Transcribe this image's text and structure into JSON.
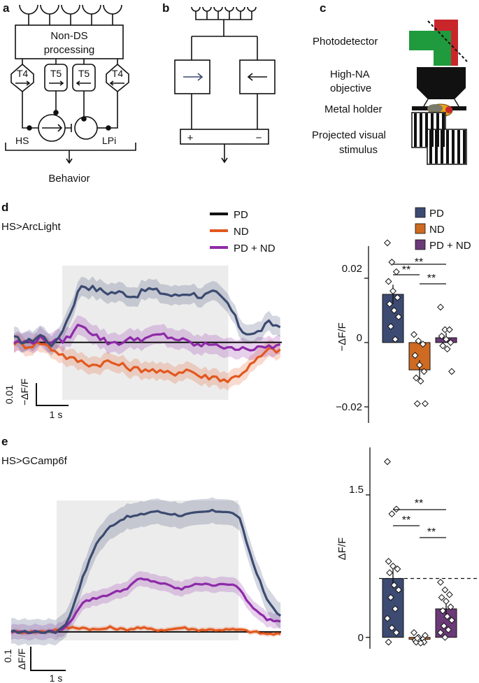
{
  "panel_letters": {
    "a": "a",
    "b": "b",
    "c": "c",
    "d": "d",
    "e": "e"
  },
  "panel_a": {
    "processing": [
      "Non-DS",
      "processing"
    ],
    "cells": [
      "T4",
      "T5",
      "T5",
      "T4"
    ],
    "hs": "HS",
    "lpi": "LPi",
    "behavior": "Behavior"
  },
  "panel_b": {
    "plus": "+",
    "minus": "−"
  },
  "panel_c": {
    "photodetector": "Photodetector",
    "objective": [
      "High-NA",
      "objective"
    ],
    "holder": "Metal holder",
    "stimulus": [
      "Projected visual",
      "stimulus"
    ]
  },
  "colors": {
    "pd": "#3b4a70",
    "nd": "#e2581e",
    "pdnd": "#8e2aa8",
    "pd_bar": "#3d4a72",
    "nd_bar": "#cf6a22",
    "pdnd_bar": "#6b3a78",
    "black": "#111111",
    "shade": "#ececec"
  },
  "panel_d": {
    "title": "HS>ArcLight",
    "legend": [
      "PD",
      "ND",
      "PD + ND"
    ],
    "scale_y_value": "0.01",
    "scale_y_unit": "−ΔF/F",
    "scale_x": "1 s",
    "bar_legend": [
      "PD",
      "ND",
      "PD + ND"
    ],
    "bar_ylabel": "−ΔF/F",
    "bar_ticks": [
      "0.02",
      "0",
      "−0.02"
    ],
    "sig": [
      "**",
      "**",
      "**"
    ]
  },
  "panel_e": {
    "title": "HS>GCamp6f",
    "scale_y_value": "0.1",
    "scale_y_unit": "ΔF/F",
    "scale_x": "1 s",
    "bar_ylabel": "ΔF/F",
    "bar_ticks": [
      "1.5",
      "0"
    ],
    "sig": [
      "**",
      "**",
      "**"
    ]
  },
  "chart_data": [
    {
      "type": "line",
      "title": "HS>ArcLight",
      "ylabel": "−ΔF/F",
      "stimulus_window_s": [
        0.9,
        4.0
      ],
      "series": [
        {
          "name": "PD",
          "x": [
            0,
            0.25,
            0.5,
            0.75,
            1.0,
            1.25,
            1.5,
            1.75,
            2.0,
            2.25,
            2.5,
            2.75,
            3.0,
            3.25,
            3.5,
            3.75,
            4.0,
            4.25,
            4.5,
            4.75,
            5.0
          ],
          "values": [
            0.001,
            0.0,
            0.002,
            -0.001,
            0.006,
            0.015,
            0.014,
            0.013,
            0.013,
            0.012,
            0.014,
            0.013,
            0.012,
            0.013,
            0.012,
            0.013,
            0.01,
            0.003,
            0.002,
            0.005,
            0.004
          ]
        },
        {
          "name": "ND",
          "x": [
            0,
            0.25,
            0.5,
            0.75,
            1.0,
            1.25,
            1.5,
            1.75,
            2.0,
            2.25,
            2.5,
            2.75,
            3.0,
            3.25,
            3.5,
            3.75,
            4.0,
            4.25,
            4.5,
            4.75,
            5.0
          ],
          "values": [
            0.0,
            -0.001,
            0.0,
            -0.002,
            -0.004,
            -0.005,
            -0.006,
            -0.005,
            -0.006,
            -0.007,
            -0.007,
            -0.008,
            -0.008,
            -0.007,
            -0.009,
            -0.009,
            -0.01,
            -0.008,
            -0.005,
            -0.002,
            -0.002
          ]
        },
        {
          "name": "PD + ND",
          "x": [
            0,
            0.25,
            0.5,
            0.75,
            1.0,
            1.25,
            1.5,
            1.75,
            2.0,
            2.25,
            2.5,
            2.75,
            3.0,
            3.25,
            3.5,
            3.75,
            4.0,
            4.25,
            4.5,
            4.75,
            5.0
          ],
          "values": [
            0.0,
            0.0,
            0.001,
            0.0,
            0.001,
            0.005,
            0.002,
            0.0,
            0.0,
            0.001,
            0.001,
            0.002,
            0.001,
            0.0,
            -0.001,
            0.0,
            -0.002,
            -0.001,
            -0.002,
            -0.001,
            -0.001
          ]
        }
      ]
    },
    {
      "type": "bar",
      "title": "HS>ArcLight summary",
      "categories": [
        "PD",
        "ND",
        "PD + ND"
      ],
      "values": [
        0.015,
        -0.0085,
        0.0015
      ],
      "errors": [
        0.003,
        0.003,
        0.0015
      ],
      "ylabel": "−ΔF/F",
      "ylim": [
        -0.025,
        0.03
      ],
      "points": [
        [
          0.031,
          0.025,
          0.022,
          0.019,
          0.016,
          0.014,
          0.012,
          0.01,
          0.008,
          0.005,
          0.001
        ],
        [
          0.0025,
          0.0005,
          -0.0005,
          -0.004,
          -0.007,
          -0.009,
          -0.011,
          -0.012,
          -0.019,
          -0.019
        ],
        [
          0.011,
          0.004,
          0.004,
          0.002,
          0.001,
          0.0,
          -0.001,
          -0.002,
          -0.009
        ]
      ]
    },
    {
      "type": "line",
      "title": "HS>GCamp6f",
      "ylabel": "ΔF/F",
      "stimulus_window_s": [
        0.8,
        4.0
      ],
      "series": [
        {
          "name": "PD",
          "x": [
            0,
            0.5,
            0.8,
            1.0,
            1.25,
            1.5,
            1.75,
            2.0,
            2.25,
            2.5,
            2.75,
            3.0,
            3.25,
            3.5,
            3.75,
            4.0,
            4.25,
            4.5,
            4.75
          ],
          "values": [
            0.0,
            0.0,
            0.0,
            0.05,
            0.25,
            0.42,
            0.5,
            0.54,
            0.55,
            0.57,
            0.56,
            0.55,
            0.56,
            0.57,
            0.57,
            0.55,
            0.33,
            0.15,
            0.07
          ]
        },
        {
          "name": "ND",
          "x": [
            0,
            0.5,
            0.8,
            1.0,
            1.25,
            1.5,
            1.75,
            2.0,
            2.25,
            2.5,
            2.75,
            3.0,
            3.25,
            3.5,
            3.75,
            4.0,
            4.25,
            4.5,
            4.75
          ],
          "values": [
            0.0,
            0.0,
            0.01,
            0.02,
            0.02,
            0.01,
            0.02,
            0.01,
            0.02,
            0.01,
            0.01,
            0.02,
            0.01,
            0.01,
            0.01,
            0.01,
            0.0,
            -0.01,
            -0.01
          ]
        },
        {
          "name": "PD + ND",
          "x": [
            0,
            0.5,
            0.8,
            1.0,
            1.25,
            1.5,
            1.75,
            2.0,
            2.25,
            2.5,
            2.75,
            3.0,
            3.25,
            3.5,
            3.75,
            4.0,
            4.25,
            4.5,
            4.75
          ],
          "values": [
            0.0,
            0.0,
            0.0,
            0.03,
            0.14,
            0.16,
            0.18,
            0.2,
            0.25,
            0.24,
            0.22,
            0.2,
            0.23,
            0.22,
            0.23,
            0.21,
            0.11,
            0.06,
            0.05
          ]
        }
      ]
    },
    {
      "type": "bar",
      "title": "HS>GCamp6f summary",
      "categories": [
        "PD",
        "ND",
        "PD + ND"
      ],
      "values": [
        0.62,
        -0.02,
        0.3
      ],
      "errors": [
        0.1,
        0.03,
        0.06
      ],
      "ylabel": "ΔF/F",
      "ylim": [
        -0.12,
        2.0
      ],
      "reference_line": 0.62,
      "points": [
        [
          1.85,
          1.3,
          1.35,
          0.8,
          0.75,
          0.72,
          0.68,
          0.55,
          0.5,
          0.42,
          0.3,
          0.2,
          0.1,
          0.05,
          -0.05
        ],
        [
          0.05,
          0.0,
          -0.02,
          -0.03,
          -0.04,
          -0.05,
          -0.05,
          -0.06,
          0.02,
          -0.01
        ],
        [
          0.58,
          0.5,
          0.45,
          0.42,
          0.38,
          0.32,
          0.28,
          0.22,
          0.18,
          0.12,
          0.08,
          0.05,
          0.0
        ]
      ]
    }
  ]
}
